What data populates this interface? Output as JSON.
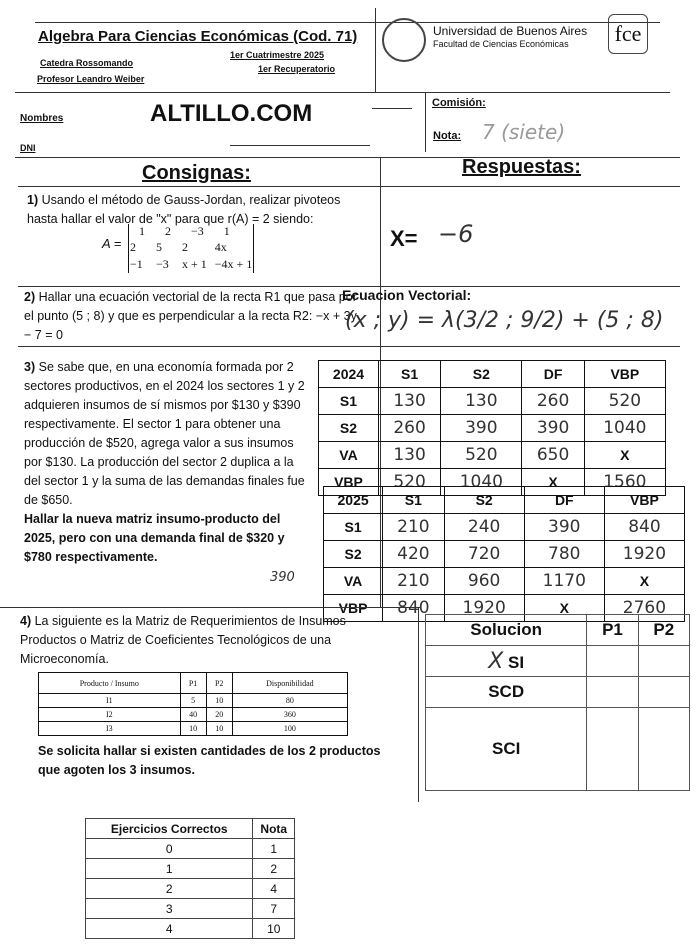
{
  "header": {
    "course": "Algebra Para Ciencias Económicas (Cod. 71)",
    "catedra": "Catedra Rossomando",
    "term": "1er Cuatrimestre 2025",
    "professor": "Profesor Leandro Weiber",
    "exam": "1er Recuperatorio",
    "university": "Universidad de Buenos Aires",
    "faculty": "Facultad de Ciencias Económicas",
    "logo": "fce"
  },
  "student": {
    "name_label": "Nombres",
    "name_value": "ALTILLO.COM",
    "dni_label": "DNI",
    "comision_label": "Comisión:",
    "nota_label": "Nota:",
    "nota_value": "7 (siete)"
  },
  "columns": {
    "left": "Consignas:",
    "right": "Respuestas:"
  },
  "q1": {
    "num": "1)",
    "text": "Usando el método de Gauss-Jordan, realizar pivoteos hasta hallar el valor de \"x\" para que r(A) = 2 siendo:",
    "matrix_label": "A =",
    "matrix": [
      [
        "1",
        "2",
        "−3",
        "1"
      ],
      [
        "2",
        "5",
        "2",
        "4x"
      ],
      [
        "−1",
        "−3",
        "x + 1",
        "−4x + 1"
      ]
    ],
    "answer_label": "X=",
    "answer": "−6"
  },
  "q2": {
    "num": "2)",
    "text": "Hallar una ecuación vectorial de la recta R1 que pasa por el punto (5 ; 8) y que es perpendicular a la recta R2: −x + 3y − 7 = 0",
    "answer_label": "Ecuacion Vectorial:",
    "answer": "(x ; y) = λ(3/2 ; 9/2) + (5 ; 8)"
  },
  "q3": {
    "num": "3)",
    "text": "Se sabe que, en una economía formada por 2 sectores productivos, en el 2024 los sectores 1 y 2 adquieren insumos de sí mismos por $130 y $390 respectivamente. El sector 1 para obtener una producción de $520, agrega valor a sus insumos por $130. La producción del sector 2 duplica a la del sector 1 y la suma de las demandas finales fue de $650.",
    "bold": "Hallar la nueva matriz insumo-producto del 2025, pero con una demanda final de $320 y $780 respectivamente.",
    "correction": "390",
    "table2024": [
      [
        "2024",
        "S1",
        "S2",
        "DF",
        "VBP"
      ],
      [
        "S1",
        "130",
        "130",
        "260",
        "520"
      ],
      [
        "S2",
        "260",
        "390",
        "390",
        "1040"
      ],
      [
        "VA",
        "130",
        "520",
        "650",
        "X"
      ],
      [
        "VBP",
        "520",
        "1040",
        "X",
        "1560"
      ]
    ],
    "table2025": [
      [
        "2025",
        "S1",
        "S2",
        "DF",
        "VBP"
      ],
      [
        "S1",
        "210",
        "240",
        "390",
        "840"
      ],
      [
        "S2",
        "420",
        "720",
        "780",
        "1920"
      ],
      [
        "VA",
        "210",
        "960",
        "1170",
        "X"
      ],
      [
        "VBP",
        "840",
        "1920",
        "X",
        "2760"
      ]
    ]
  },
  "q4": {
    "num": "4)",
    "text": "La siguiente es la Matriz de Requerimientos de Insumos-Productos o Matriz de Coeficientes Tecnológicos de una Microeconomía.",
    "table": [
      [
        "Producto / Insumo",
        "P1",
        "P2",
        "Disponibilidad"
      ],
      [
        "I1",
        "5",
        "10",
        "80"
      ],
      [
        "I2",
        "40",
        "20",
        "360"
      ],
      [
        "I3",
        "10",
        "10",
        "100"
      ]
    ],
    "bold": "Se solicita hallar si existen cantidades de los 2 productos que agoten los 3 insumos.",
    "solution": {
      "headers": [
        "Solucion",
        "P1",
        "P2"
      ],
      "rows": [
        "SI",
        "SCD",
        "SCI"
      ],
      "mark": "X"
    }
  },
  "grades": {
    "headers": [
      "Ejercicios Correctos",
      "Nota"
    ],
    "rows": [
      [
        "0",
        "1"
      ],
      [
        "1",
        "2"
      ],
      [
        "2",
        "4"
      ],
      [
        "3",
        "7"
      ],
      [
        "4",
        "10"
      ]
    ]
  }
}
